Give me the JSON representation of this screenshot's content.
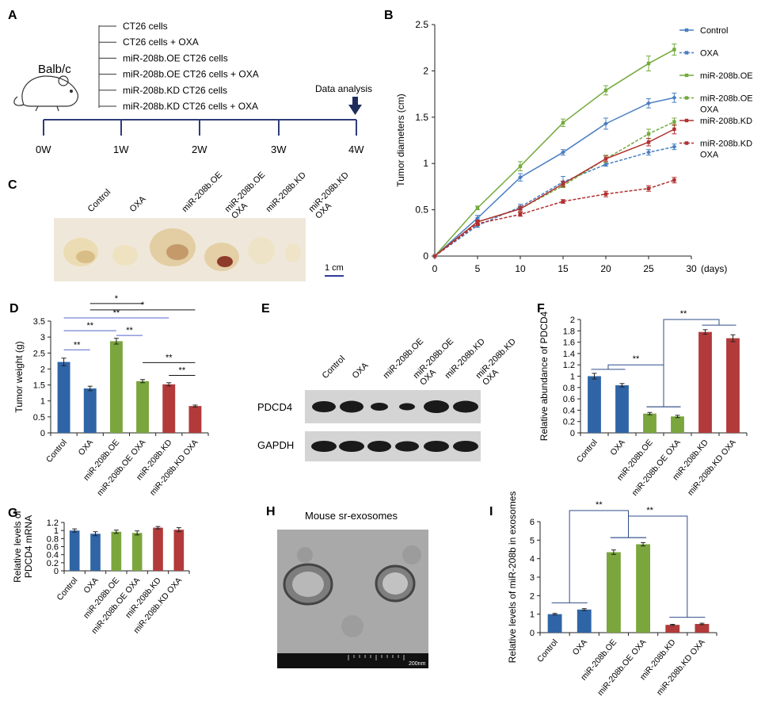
{
  "colors": {
    "control": "#2f65a6",
    "oe": "#7aa63d",
    "kd": "#b23a3a",
    "line_control": "#4a7fc1",
    "line_oe": "#74aa3c",
    "line_kd": "#b03030",
    "arrow": "#1f2d5c"
  },
  "panelA": {
    "letter": "A",
    "mouse_label": "Balb/c",
    "groups": [
      "CT26 cells",
      "CT26 cells + OXA",
      "miR-208b.OE CT26 cells",
      "miR-208b.OE CT26 cells + OXA",
      "miR-208b.KD CT26 cells",
      "miR-208b.KD CT26 cells + OXA"
    ],
    "timeline": [
      "0W",
      "1W",
      "2W",
      "3W",
      "4W"
    ],
    "analysis_label": "Data analysis",
    "icons": [
      "mouse-icon",
      "down-arrow-icon"
    ]
  },
  "panelC": {
    "letter": "C",
    "labels": [
      "Control",
      "OXA",
      "miR-208b.OE",
      "miR-208b.OE OXA",
      "miR-208b.KD",
      "miR-208b.KD OXA"
    ],
    "scale_label": "1 cm"
  },
  "panelE": {
    "letter": "E",
    "labels": [
      "Control",
      "OXA",
      "miR-208b.OE",
      "miR-208b.OE OXA",
      "miR-208b.KD",
      "miR-208b.KD OXA"
    ],
    "blot_rows": [
      "PDCD4",
      "GAPDH"
    ]
  },
  "panelH": {
    "letter": "H",
    "title": "Mouse sr-exosomes",
    "scale_label": "200nm"
  },
  "chart_data": [
    {
      "id": "B",
      "type": "line",
      "letter": "B",
      "xlabel": "(days)",
      "ylabel": "Tumor diameters (cm)",
      "xlim": [
        0,
        30
      ],
      "ylim": [
        0,
        2.5
      ],
      "xticks": [
        "0",
        "5",
        "10",
        "15",
        "20",
        "25",
        "30"
      ],
      "yticks": [
        "0",
        "0.5",
        "1",
        "1.5",
        "2",
        "2.5"
      ],
      "x": [
        0,
        5,
        10,
        15,
        20,
        25,
        28
      ],
      "legend_position": "right",
      "series": [
        {
          "name": "Control",
          "values": [
            0,
            0.41,
            0.85,
            1.12,
            1.43,
            1.65,
            1.71
          ],
          "errors": [
            0,
            0.03,
            0.04,
            0.03,
            0.06,
            0.05,
            0.05
          ],
          "color": "#4a7fc1",
          "dashed": false,
          "marker": "diamond"
        },
        {
          "name": "OXA",
          "values": [
            0,
            0.33,
            0.53,
            0.8,
            0.99,
            1.12,
            1.18
          ],
          "errors": [
            0,
            0.02,
            0.03,
            0.06,
            0.02,
            0.03,
            0.03
          ],
          "color": "#4a7fc1",
          "dashed": true,
          "marker": "diamond"
        },
        {
          "name": "miR-208b.OE",
          "values": [
            0,
            0.52,
            0.97,
            1.44,
            1.79,
            2.08,
            2.23
          ],
          "errors": [
            0,
            0.02,
            0.05,
            0.04,
            0.05,
            0.08,
            0.06
          ],
          "color": "#74aa3c",
          "dashed": false,
          "marker": "square"
        },
        {
          "name": "miR-208b.OE OXA",
          "values": [
            0,
            0.37,
            0.51,
            0.76,
            1.05,
            1.32,
            1.45
          ],
          "errors": [
            0,
            0.02,
            0.03,
            0.02,
            0.04,
            0.05,
            0.04
          ],
          "color": "#74aa3c",
          "dashed": true,
          "marker": "square"
        },
        {
          "name": "miR-208b.KD",
          "values": [
            0,
            0.37,
            0.51,
            0.78,
            1.05,
            1.23,
            1.37
          ],
          "errors": [
            0,
            0.02,
            0.03,
            0.03,
            0.03,
            0.04,
            0.05
          ],
          "color": "#b03030",
          "dashed": false,
          "marker": "square"
        },
        {
          "name": "miR-208b.KD OXA",
          "values": [
            0,
            0.35,
            0.45,
            0.59,
            0.67,
            0.73,
            0.82
          ],
          "errors": [
            0,
            0.02,
            0.02,
            0.02,
            0.03,
            0.03,
            0.03
          ],
          "color": "#b03030",
          "dashed": true,
          "marker": "square"
        }
      ]
    },
    {
      "id": "D",
      "type": "bar",
      "letter": "D",
      "ylabel": "Tumor weight (g)",
      "ylim": [
        0,
        3.5
      ],
      "yticks": [
        "0",
        "0.5",
        "1",
        "1.5",
        "2",
        "2.5",
        "3",
        "3.5"
      ],
      "categories": [
        "Control",
        "OXA",
        "miR-208b.OE",
        "miR-208b.OE OXA",
        "miR-208b.KD",
        "miR-208b.KD OXA"
      ],
      "values": [
        2.22,
        1.39,
        2.87,
        1.62,
        1.52,
        0.84
      ],
      "errors": [
        0.12,
        0.07,
        0.09,
        0.05,
        0.05,
        0.03
      ],
      "bar_colors": [
        "#2f65a6",
        "#2f65a6",
        "#7aa63d",
        "#7aa63d",
        "#b23a3a",
        "#b23a3a"
      ],
      "significance": [
        {
          "from": 0,
          "to": 1,
          "label": "**",
          "color": "#5566cc",
          "level": 2.6
        },
        {
          "from": 0,
          "to": 2,
          "label": "**",
          "color": "#5566cc",
          "level": 3.2
        },
        {
          "from": 2,
          "to": 3,
          "label": "**",
          "color": "#5566cc",
          "level": 3.05
        },
        {
          "from": 0,
          "to": 4,
          "label": "**",
          "color": "#5566cc",
          "level": 3.6
        },
        {
          "from": 1,
          "to": 3,
          "label": "*",
          "color": "#111111",
          "level": 4.05
        },
        {
          "from": 1,
          "to": 5,
          "label": "*",
          "color": "#111111",
          "level": 3.85
        },
        {
          "from": 4,
          "to": 5,
          "label": "**",
          "color": "#111111",
          "level": 1.8
        },
        {
          "from": 3,
          "to": 5,
          "label": "**",
          "color": "#111111",
          "level": 2.2
        }
      ]
    },
    {
      "id": "F",
      "type": "bar",
      "letter": "F",
      "ylabel": "Relative abundance of PDCD4",
      "ylim": [
        0,
        2
      ],
      "yticks": [
        "0",
        "0.2",
        "0.4",
        "0.6",
        "0.8",
        "1",
        "1.2",
        "1.4",
        "1.6",
        "1.8",
        "2"
      ],
      "categories": [
        "Control",
        "OXA",
        "miR-208b.OE",
        "miR-208b.OE OXA",
        "miR-208b.KD",
        "miR-208b.KD OXA"
      ],
      "values": [
        1.0,
        0.84,
        0.34,
        0.29,
        1.78,
        1.67
      ],
      "errors": [
        0.05,
        0.03,
        0.02,
        0.02,
        0.04,
        0.06
      ],
      "bar_colors": [
        "#2f65a6",
        "#2f65a6",
        "#7aa63d",
        "#7aa63d",
        "#b23a3a",
        "#b23a3a"
      ],
      "significance": [
        {
          "label": "**",
          "pairs": [
            [
              0,
              1
            ],
            [
              2,
              3
            ]
          ],
          "level": 1.2
        },
        {
          "label": "**",
          "pairs": [
            [
              2,
              3
            ],
            [
              4,
              5
            ]
          ],
          "level": 2.0
        }
      ]
    },
    {
      "id": "G",
      "type": "bar",
      "letter": "G",
      "ylabel": "Relative levels of PDCD4 mRNA",
      "ylim": [
        0,
        1.2
      ],
      "yticks": [
        "0",
        "0.2",
        "0.4",
        "0.6",
        "0.8",
        "1",
        "1.2"
      ],
      "categories": [
        "Control",
        "OXA",
        "miR-208b.OE",
        "miR-208b.OE OXA",
        "miR-208b.KD",
        "miR-208b.KD OXA"
      ],
      "values": [
        1.0,
        0.92,
        0.97,
        0.94,
        1.07,
        1.02
      ],
      "errors": [
        0.04,
        0.05,
        0.04,
        0.05,
        0.03,
        0.05
      ],
      "bar_colors": [
        "#2f65a6",
        "#2f65a6",
        "#7aa63d",
        "#7aa63d",
        "#b23a3a",
        "#b23a3a"
      ]
    },
    {
      "id": "I",
      "type": "bar",
      "letter": "I",
      "ylabel": "Relative levels of miR-208b in exosomes",
      "ylim": [
        0,
        6
      ],
      "yticks": [
        "0",
        "1",
        "2",
        "3",
        "4",
        "5",
        "6"
      ],
      "categories": [
        "Control",
        "OXA",
        "miR-208b.OE",
        "miR-208b.OE OXA",
        "miR-208b.KD",
        "miR-208b.KD OXA"
      ],
      "values": [
        1.0,
        1.25,
        4.35,
        4.78,
        0.42,
        0.47
      ],
      "errors": [
        0.04,
        0.05,
        0.12,
        0.09,
        0.03,
        0.04
      ],
      "bar_colors": [
        "#2f65a6",
        "#2f65a6",
        "#7aa63d",
        "#7aa63d",
        "#b23a3a",
        "#b23a3a"
      ],
      "significance": [
        {
          "label": "**",
          "pairs": [
            [
              0,
              1
            ],
            [
              2,
              3
            ]
          ],
          "level": 6.6
        },
        {
          "label": "**",
          "pairs": [
            [
              2,
              3
            ],
            [
              4,
              5
            ]
          ],
          "level": 6.3
        }
      ]
    }
  ]
}
